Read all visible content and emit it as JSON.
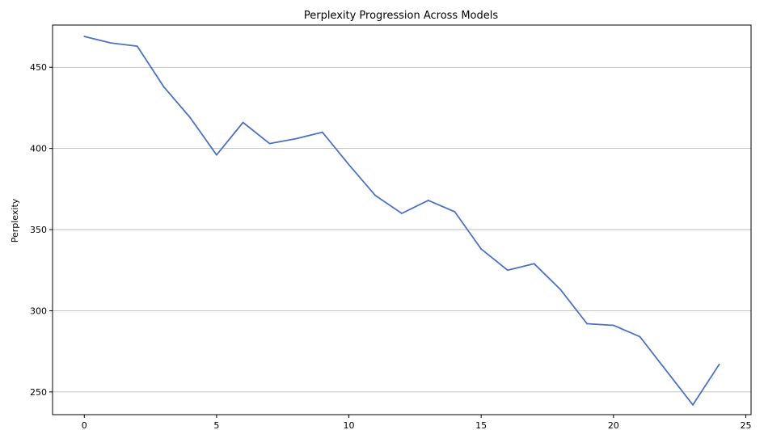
{
  "chart_data": {
    "type": "line",
    "title": "Perplexity Progression Across Models",
    "xlabel": "",
    "ylabel": "Perplexity",
    "xlim": [
      -1.2,
      25.2
    ],
    "ylim": [
      236,
      476
    ],
    "x_ticks": [
      0,
      5,
      10,
      15,
      20,
      25
    ],
    "y_ticks": [
      250,
      300,
      350,
      400,
      450
    ],
    "grid": "horizontal",
    "line_color": "#4c72c4",
    "series": [
      {
        "x": [
          0,
          1,
          2,
          3,
          4,
          5,
          6,
          7,
          8,
          9,
          10,
          11,
          12,
          13,
          14,
          15,
          16,
          17,
          18,
          19,
          20,
          21,
          22,
          23,
          24
        ],
        "values": [
          469,
          465,
          463,
          438,
          419,
          396,
          416,
          403,
          406,
          410,
          390,
          371,
          360,
          368,
          361,
          338,
          325,
          329,
          313,
          292,
          291,
          284,
          263,
          242,
          267
        ]
      }
    ]
  }
}
